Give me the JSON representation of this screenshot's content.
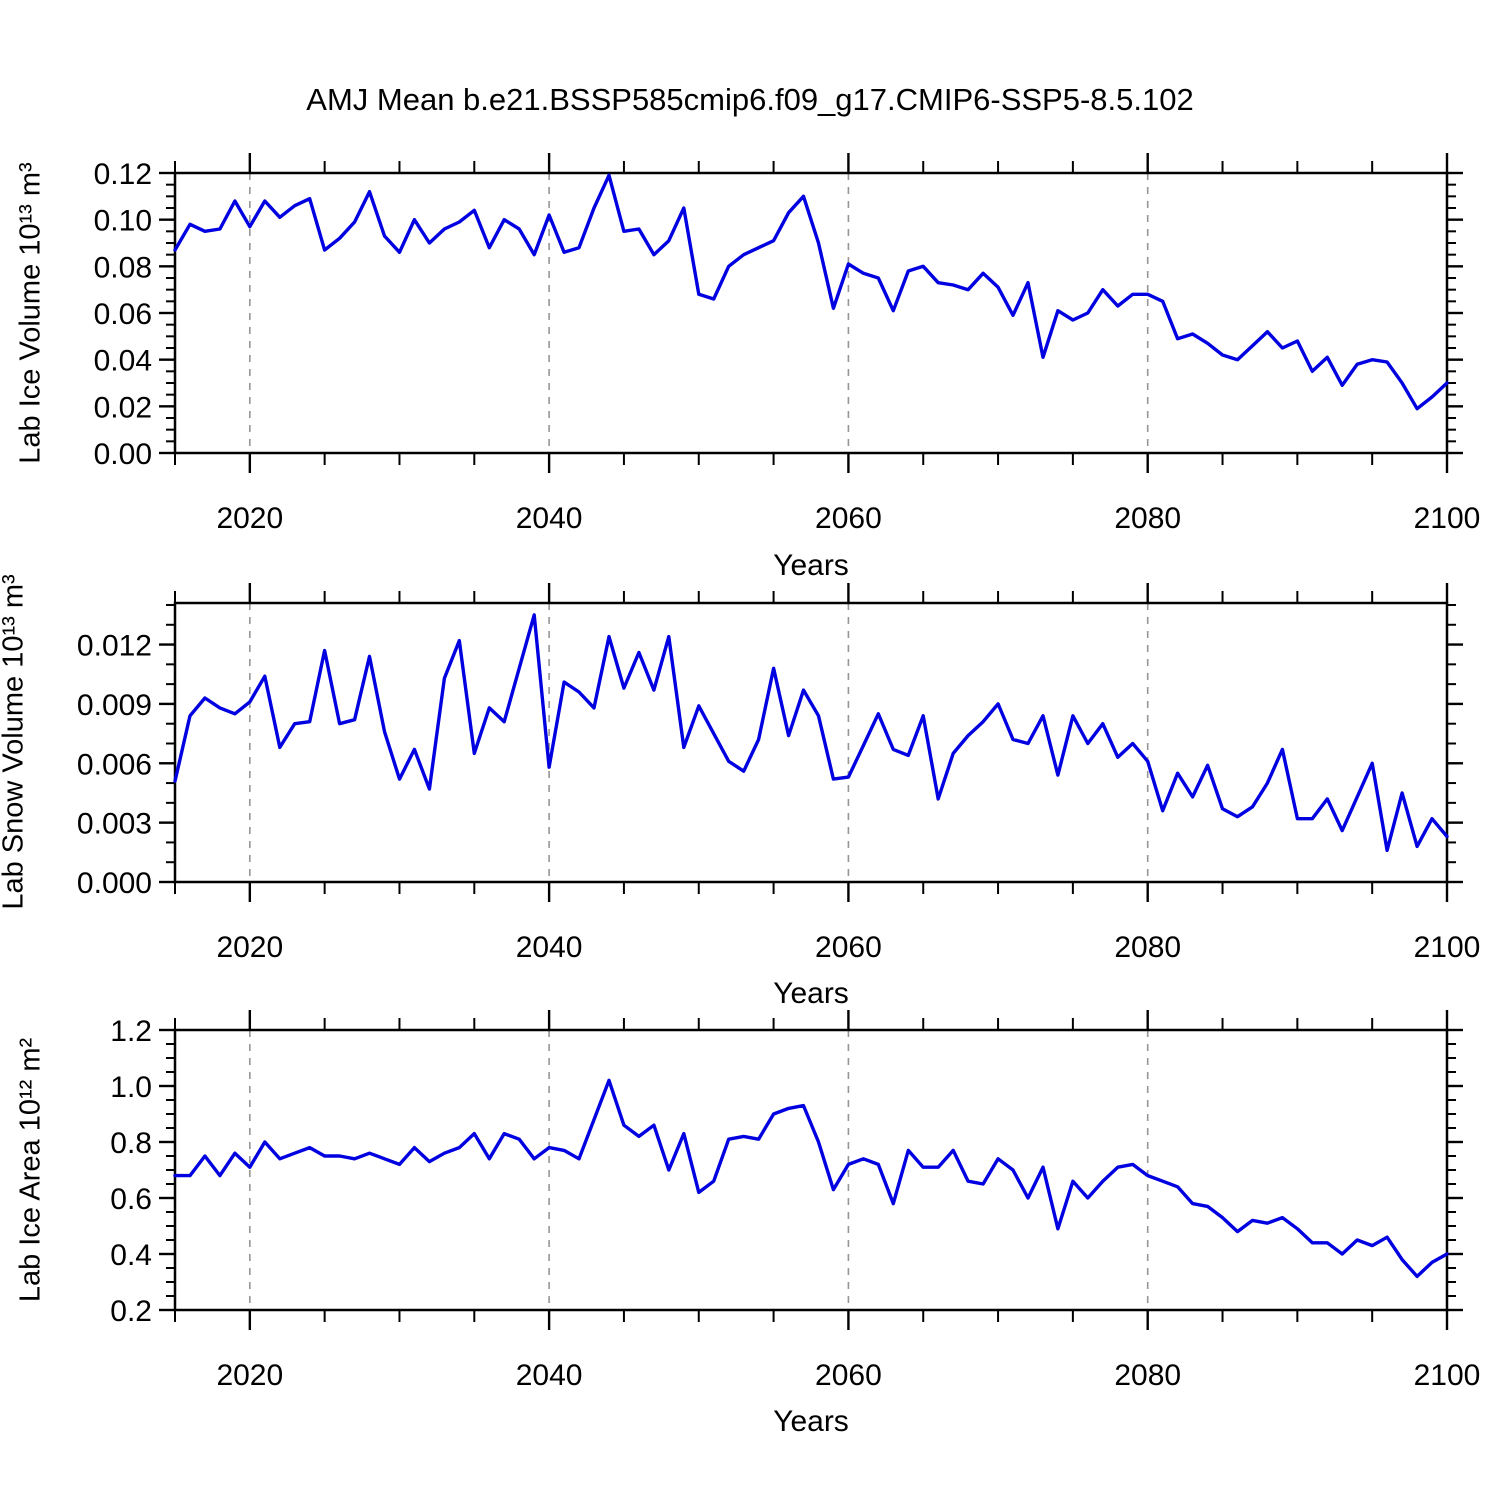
{
  "title": "AMJ Mean b.e21.BSSP585cmip6.f09_g17.CMIP6-SSP5-8.5.102",
  "colors": {
    "line": "#0000e0",
    "grid": "#969696",
    "axis": "#000000"
  },
  "chart_data": [
    {
      "type": "line",
      "ylabel": "Lab Ice Volume 10¹³ m³",
      "xlabel": "Years",
      "x_start": 2015,
      "x_step": 1,
      "xlim": [
        2015,
        2100
      ],
      "xticks": [
        2020,
        2040,
        2060,
        2080,
        2100
      ],
      "xtick_labels": [
        "2020",
        "2040",
        "2060",
        "2080",
        "2100"
      ],
      "x_minor_step": 5,
      "grid_x": [
        2020,
        2040,
        2060,
        2080
      ],
      "ylim": [
        0,
        0.12
      ],
      "yticks": [
        0,
        0.02,
        0.04,
        0.06,
        0.08,
        0.1,
        0.12
      ],
      "ytick_labels": [
        "0.00",
        "0.02",
        "0.04",
        "0.06",
        "0.08",
        "0.10",
        "0.12"
      ],
      "y_minor_step": 0.005,
      "values": [
        0.087,
        0.098,
        0.095,
        0.096,
        0.108,
        0.097,
        0.108,
        0.101,
        0.106,
        0.109,
        0.087,
        0.092,
        0.099,
        0.112,
        0.093,
        0.086,
        0.1,
        0.09,
        0.096,
        0.099,
        0.104,
        0.088,
        0.1,
        0.096,
        0.085,
        0.102,
        0.086,
        0.088,
        0.105,
        0.119,
        0.095,
        0.096,
        0.085,
        0.091,
        0.105,
        0.068,
        0.066,
        0.08,
        0.085,
        0.088,
        0.091,
        0.103,
        0.11,
        0.09,
        0.062,
        0.081,
        0.077,
        0.075,
        0.061,
        0.078,
        0.08,
        0.073,
        0.072,
        0.07,
        0.077,
        0.071,
        0.059,
        0.073,
        0.041,
        0.061,
        0.057,
        0.06,
        0.07,
        0.063,
        0.068,
        0.068,
        0.065,
        0.049,
        0.051,
        0.047,
        0.042,
        0.04,
        0.046,
        0.052,
        0.045,
        0.048,
        0.035,
        0.041,
        0.029,
        0.038,
        0.04,
        0.039,
        0.03,
        0.019,
        0.024,
        0.03
      ]
    },
    {
      "type": "line",
      "ylabel": "Lab Snow Volume 10¹³ m³",
      "xlabel": "Years",
      "x_start": 2015,
      "x_step": 1,
      "xlim": [
        2015,
        2100
      ],
      "xticks": [
        2020,
        2040,
        2060,
        2080,
        2100
      ],
      "xtick_labels": [
        "2020",
        "2040",
        "2060",
        "2080",
        "2100"
      ],
      "x_minor_step": 5,
      "grid_x": [
        2020,
        2040,
        2060,
        2080
      ],
      "ylim": [
        0,
        0.0141
      ],
      "yticks": [
        0,
        0.003,
        0.006,
        0.009,
        0.012
      ],
      "ytick_labels": [
        "0.000",
        "0.003",
        "0.006",
        "0.009",
        "0.012"
      ],
      "y_minor_step": 0.001,
      "values": [
        0.0051,
        0.0084,
        0.0093,
        0.0088,
        0.0085,
        0.0091,
        0.0104,
        0.0068,
        0.008,
        0.0081,
        0.0117,
        0.008,
        0.0082,
        0.0114,
        0.0076,
        0.0052,
        0.0067,
        0.0047,
        0.0103,
        0.0122,
        0.0065,
        0.0088,
        0.0081,
        0.0108,
        0.0135,
        0.0058,
        0.0101,
        0.0096,
        0.0088,
        0.0124,
        0.0098,
        0.0116,
        0.0097,
        0.0124,
        0.0068,
        0.0089,
        0.0075,
        0.0061,
        0.0056,
        0.0072,
        0.0108,
        0.0074,
        0.0097,
        0.0084,
        0.0052,
        0.0053,
        0.0069,
        0.0085,
        0.0067,
        0.0064,
        0.0084,
        0.0042,
        0.0065,
        0.0074,
        0.0081,
        0.009,
        0.0072,
        0.007,
        0.0084,
        0.0054,
        0.0084,
        0.007,
        0.008,
        0.0063,
        0.007,
        0.0061,
        0.0036,
        0.0055,
        0.0043,
        0.0059,
        0.0037,
        0.0033,
        0.0038,
        0.005,
        0.0067,
        0.0032,
        0.0032,
        0.0042,
        0.0026,
        0.0043,
        0.006,
        0.0016,
        0.0045,
        0.0018,
        0.0032,
        0.0023
      ]
    },
    {
      "type": "line",
      "ylabel": "Lab Ice Area 10¹² m²",
      "xlabel": "Years",
      "x_start": 2015,
      "x_step": 1,
      "xlim": [
        2015,
        2100
      ],
      "xticks": [
        2020,
        2040,
        2060,
        2080,
        2100
      ],
      "xtick_labels": [
        "2020",
        "2040",
        "2060",
        "2080",
        "2100"
      ],
      "x_minor_step": 5,
      "grid_x": [
        2020,
        2040,
        2060,
        2080
      ],
      "ylim": [
        0.2,
        1.2
      ],
      "yticks": [
        0.2,
        0.4,
        0.6,
        0.8,
        1.0,
        1.2
      ],
      "ytick_labels": [
        "0.2",
        "0.4",
        "0.6",
        "0.8",
        "1.0",
        "1.2"
      ],
      "y_minor_step": 0.05,
      "values": [
        0.68,
        0.68,
        0.75,
        0.68,
        0.76,
        0.71,
        0.8,
        0.74,
        0.76,
        0.78,
        0.75,
        0.75,
        0.74,
        0.76,
        0.74,
        0.72,
        0.78,
        0.73,
        0.76,
        0.78,
        0.83,
        0.74,
        0.83,
        0.81,
        0.74,
        0.78,
        0.77,
        0.74,
        0.88,
        1.02,
        0.86,
        0.82,
        0.86,
        0.7,
        0.83,
        0.62,
        0.66,
        0.81,
        0.82,
        0.81,
        0.9,
        0.92,
        0.93,
        0.8,
        0.63,
        0.72,
        0.74,
        0.72,
        0.58,
        0.77,
        0.71,
        0.71,
        0.77,
        0.66,
        0.65,
        0.74,
        0.7,
        0.6,
        0.71,
        0.49,
        0.66,
        0.6,
        0.66,
        0.71,
        0.72,
        0.68,
        0.66,
        0.64,
        0.58,
        0.57,
        0.53,
        0.48,
        0.52,
        0.51,
        0.53,
        0.49,
        0.44,
        0.44,
        0.4,
        0.45,
        0.43,
        0.46,
        0.38,
        0.32,
        0.37,
        0.4
      ]
    }
  ]
}
